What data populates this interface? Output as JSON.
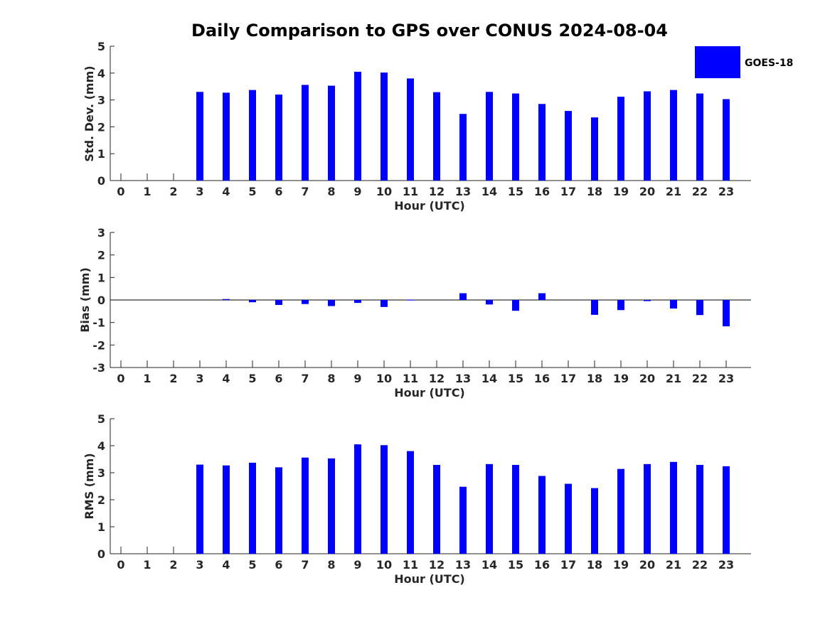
{
  "chart_data": {
    "title": "Daily Comparison to GPS over CONUS 2024-08-04",
    "legend": {
      "label": "GOES-18",
      "color": "#0000FF",
      "placement": "top-right"
    },
    "charts": [
      {
        "type": "bar",
        "name": "std-dev",
        "ylabel": "Std. Dev. (mm)",
        "xlabel": "Hour (UTC)",
        "ylim": [
          0,
          5
        ],
        "yticks": [
          0,
          1,
          2,
          3,
          4,
          5
        ],
        "x": [
          0,
          1,
          2,
          3,
          4,
          5,
          6,
          7,
          8,
          9,
          10,
          11,
          12,
          13,
          14,
          15,
          16,
          17,
          18,
          19,
          20,
          21,
          22,
          23
        ],
        "values": [
          null,
          null,
          null,
          3.3,
          3.27,
          3.37,
          3.2,
          3.56,
          3.53,
          4.05,
          4.02,
          3.8,
          3.29,
          2.48,
          3.3,
          3.24,
          2.85,
          2.59,
          2.35,
          3.12,
          3.32,
          3.37,
          3.24,
          3.03
        ],
        "color": "#0000FF"
      },
      {
        "type": "bar",
        "name": "bias",
        "ylabel": "Bias (mm)",
        "xlabel": "Hour (UTC)",
        "ylim": [
          -3,
          3
        ],
        "yticks": [
          -3,
          -2,
          -1,
          0,
          1,
          2,
          3
        ],
        "x": [
          0,
          1,
          2,
          3,
          4,
          5,
          6,
          7,
          8,
          9,
          10,
          11,
          12,
          13,
          14,
          15,
          16,
          17,
          18,
          19,
          20,
          21,
          22,
          23
        ],
        "values": [
          null,
          null,
          null,
          null,
          0.04,
          -0.1,
          -0.22,
          -0.18,
          -0.27,
          -0.13,
          -0.31,
          0.01,
          null,
          0.3,
          -0.2,
          -0.48,
          0.3,
          null,
          -0.66,
          -0.45,
          -0.05,
          -0.38,
          -0.67,
          -1.17
        ],
        "color": "#0000FF"
      },
      {
        "type": "bar",
        "name": "rms",
        "ylabel": "RMS (mm)",
        "xlabel": "Hour (UTC)",
        "ylim": [
          0,
          5
        ],
        "yticks": [
          0,
          1,
          2,
          3,
          4,
          5
        ],
        "x": [
          0,
          1,
          2,
          3,
          4,
          5,
          6,
          7,
          8,
          9,
          10,
          11,
          12,
          13,
          14,
          15,
          16,
          17,
          18,
          19,
          20,
          21,
          22,
          23
        ],
        "values": [
          null,
          null,
          null,
          3.3,
          3.27,
          3.37,
          3.2,
          3.56,
          3.53,
          4.05,
          4.02,
          3.8,
          3.29,
          2.48,
          3.32,
          3.29,
          2.88,
          2.59,
          2.43,
          3.14,
          3.32,
          3.4,
          3.29,
          3.24
        ],
        "color": "#0000FF"
      }
    ]
  }
}
